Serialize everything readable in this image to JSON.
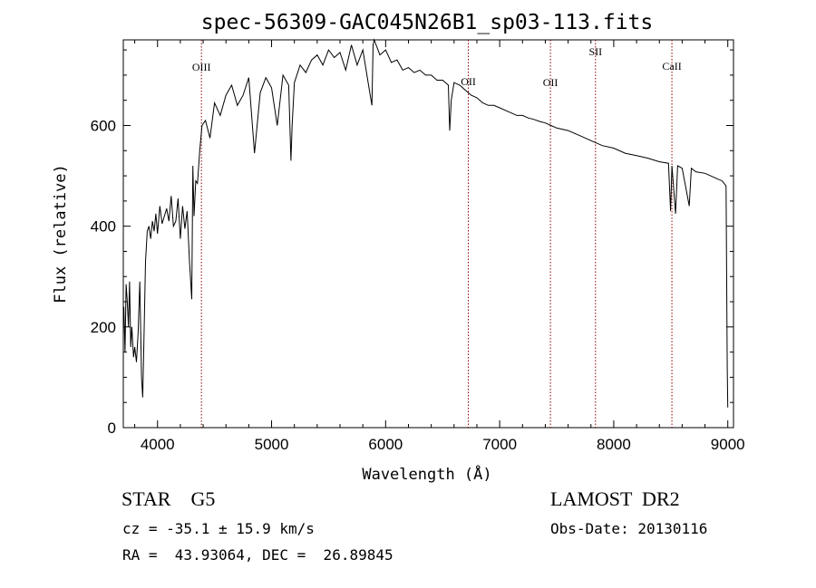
{
  "chart_data": {
    "type": "line",
    "title": "spec-56309-GAC045N26B1_sp03-113.fits",
    "xlabel": "Wavelength (Å)",
    "ylabel": "Flux (relative)",
    "xlim": [
      3700,
      9050
    ],
    "ylim": [
      0,
      770
    ],
    "xticks": [
      4000,
      5000,
      6000,
      7000,
      8000,
      9000
    ],
    "yticks": [
      0,
      200,
      400,
      600
    ],
    "line_color": "#000000",
    "marker_color": "#8b0000",
    "spectral_lines": [
      {
        "label": "OIII",
        "x": 4385
      },
      {
        "label": "OII",
        "x": 6725
      },
      {
        "label": "OII",
        "x": 7445
      },
      {
        "label": "SII",
        "x": 7840
      },
      {
        "label": "CaII",
        "x": 8510
      }
    ],
    "series": [
      {
        "x": [
          3705,
          3715,
          3725,
          3735,
          3745,
          3755,
          3765,
          3775,
          3790,
          3800,
          3815,
          3830,
          3845,
          3860,
          3870,
          3880,
          3895,
          3910,
          3925,
          3940,
          3955,
          3970,
          3985,
          4000,
          4020,
          4040,
          4060,
          4080,
          4100,
          4120,
          4140,
          4160,
          4180,
          4200,
          4220,
          4240,
          4260,
          4280,
          4300,
          4310,
          4320,
          4335,
          4350,
          4370,
          4390,
          4420,
          4460,
          4500,
          4550,
          4600,
          4650,
          4700,
          4750,
          4800,
          4850,
          4900,
          4950,
          5000,
          5050,
          5100,
          5150,
          5170,
          5180,
          5200,
          5250,
          5300,
          5350,
          5400,
          5450,
          5500,
          5550,
          5600,
          5650,
          5700,
          5750,
          5800,
          5850,
          5880,
          5890,
          5900,
          5950,
          6000,
          6050,
          6100,
          6150,
          6200,
          6250,
          6300,
          6350,
          6400,
          6450,
          6500,
          6550,
          6562,
          6575,
          6600,
          6650,
          6700,
          6750,
          6800,
          6850,
          6900,
          6950,
          7000,
          7050,
          7100,
          7150,
          7200,
          7250,
          7300,
          7350,
          7400,
          7450,
          7500,
          7600,
          7700,
          7800,
          7900,
          8000,
          8100,
          8200,
          8300,
          8400,
          8480,
          8498,
          8510,
          8542,
          8560,
          8600,
          8662,
          8680,
          8720,
          8800,
          8850,
          8900,
          8950,
          8985,
          8995,
          9000
        ],
        "values": [
          240,
          150,
          285,
          250,
          200,
          290,
          160,
          200,
          140,
          160,
          130,
          190,
          290,
          100,
          60,
          160,
          330,
          390,
          400,
          375,
          410,
          390,
          425,
          385,
          440,
          405,
          420,
          435,
          410,
          460,
          400,
          410,
          455,
          375,
          440,
          395,
          430,
          330,
          255,
          520,
          420,
          490,
          485,
          550,
          600,
          610,
          575,
          645,
          620,
          660,
          680,
          640,
          660,
          695,
          545,
          665,
          695,
          675,
          600,
          700,
          680,
          530,
          600,
          685,
          720,
          705,
          730,
          740,
          720,
          750,
          735,
          745,
          710,
          760,
          720,
          750,
          680,
          640,
          760,
          770,
          740,
          750,
          725,
          730,
          710,
          715,
          705,
          710,
          700,
          700,
          690,
          690,
          680,
          590,
          650,
          685,
          680,
          670,
          660,
          655,
          645,
          640,
          640,
          635,
          630,
          625,
          620,
          620,
          615,
          612,
          608,
          605,
          600,
          595,
          590,
          580,
          570,
          560,
          555,
          545,
          540,
          535,
          528,
          525,
          430,
          520,
          425,
          520,
          515,
          440,
          515,
          508,
          505,
          500,
          495,
          490,
          480,
          120,
          40
        ]
      }
    ]
  },
  "info": {
    "object": "STAR    G5",
    "survey": "LAMOST  DR2",
    "cz": "cz = -35.1 ± 15.9 km/s",
    "obsdate": "Obs-Date: 20130116",
    "radec": "RA =  43.93064, DEC =  26.89845"
  }
}
